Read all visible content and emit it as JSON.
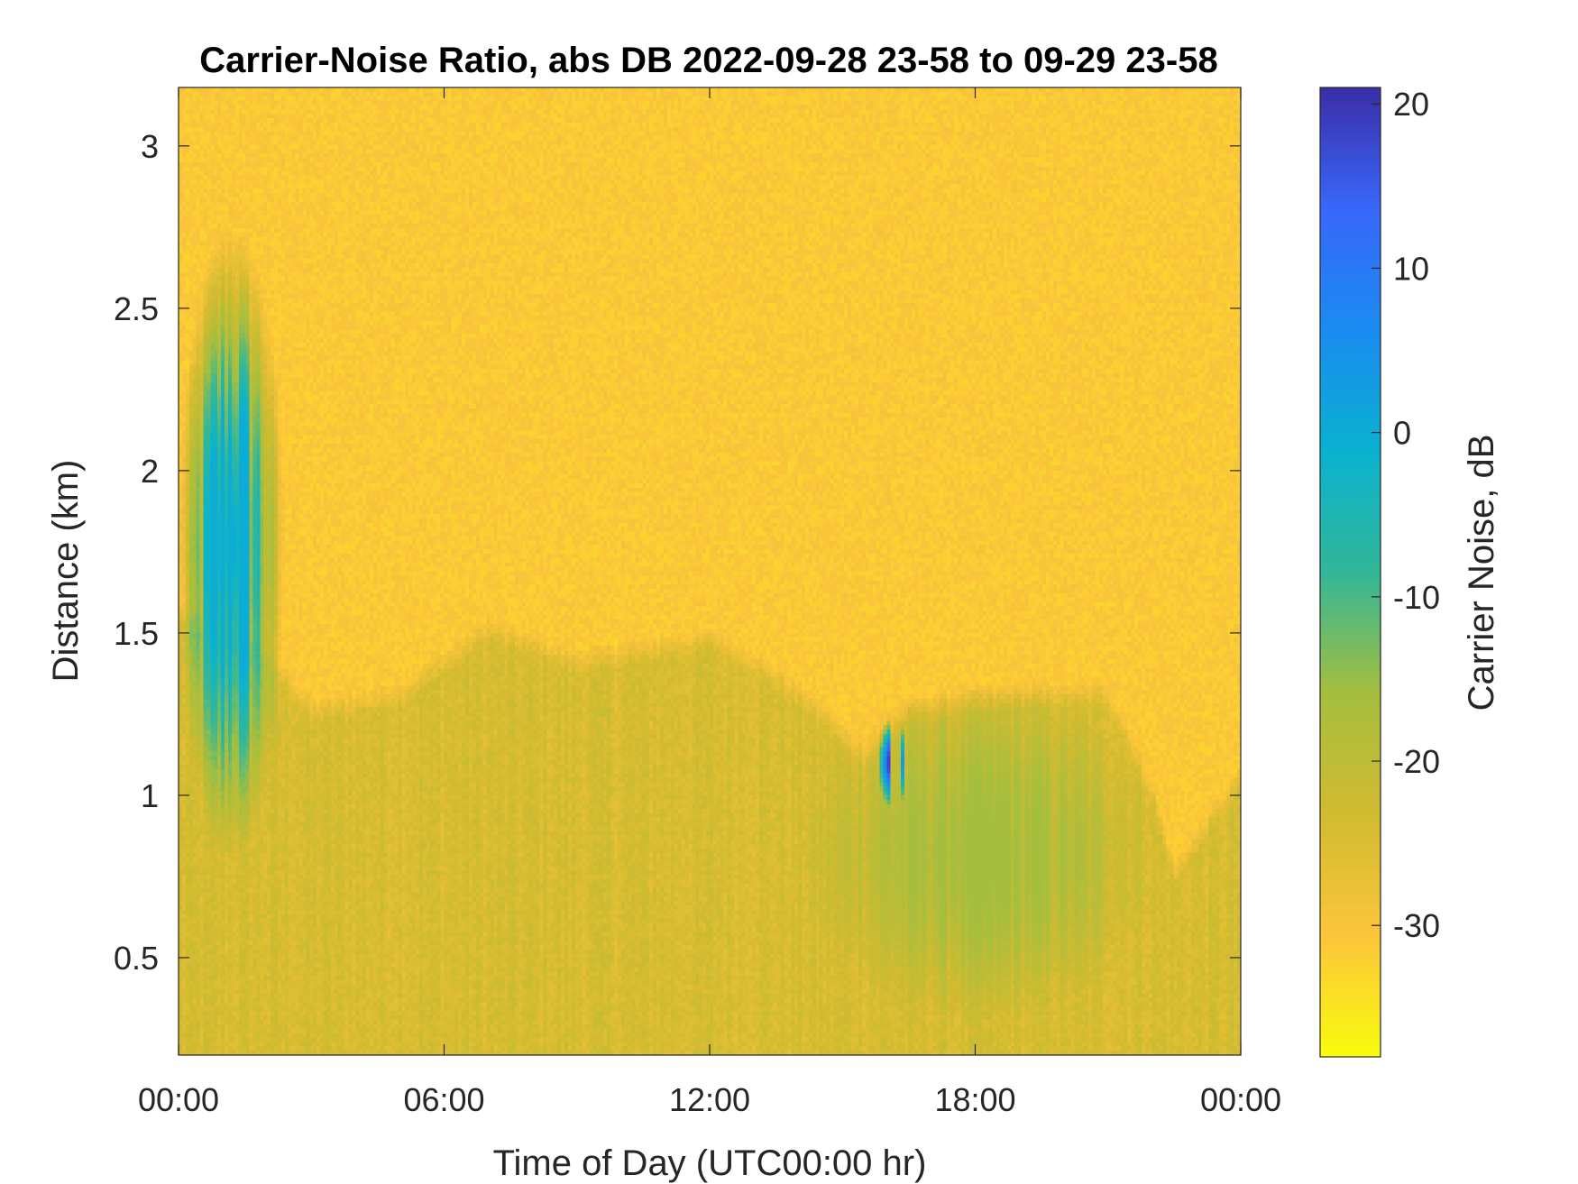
{
  "chart_data": {
    "type": "heatmap",
    "title": "Carrier-Noise Ratio, abs DB 2022-09-28 23-58 to 09-29 23-58",
    "xlabel": "Time of Day (UTC00:00 hr)",
    "ylabel": "Distance (km)",
    "colorbar_label": "Carrier Noise, dB",
    "xlim_hours": [
      0,
      24
    ],
    "ylim_km": [
      0.2,
      3.18
    ],
    "clim_db": [
      -38,
      21
    ],
    "x_ticks": [
      {
        "value": 0,
        "label": "00:00"
      },
      {
        "value": 6,
        "label": "06:00"
      },
      {
        "value": 12,
        "label": "12:00"
      },
      {
        "value": 18,
        "label": "18:00"
      },
      {
        "value": 24,
        "label": "00:00"
      }
    ],
    "y_ticks": [
      {
        "value": 0.5,
        "label": "0.5"
      },
      {
        "value": 1.0,
        "label": "1"
      },
      {
        "value": 1.5,
        "label": "1.5"
      },
      {
        "value": 2.0,
        "label": "2"
      },
      {
        "value": 2.5,
        "label": "2.5"
      },
      {
        "value": 3.0,
        "label": "3"
      }
    ],
    "colorbar_ticks": [
      {
        "value": -30,
        "label": "-30"
      },
      {
        "value": -20,
        "label": "-20"
      },
      {
        "value": -10,
        "label": "-10"
      },
      {
        "value": 0,
        "label": "0"
      },
      {
        "value": 10,
        "label": "10"
      },
      {
        "value": 20,
        "label": "20"
      }
    ],
    "colormap": [
      "#f9fb0e",
      "#fcc53b",
      "#d2bb30",
      "#a5be3e",
      "#33b798",
      "#0ab2d0",
      "#1a8cf0",
      "#3968fb",
      "#3a2fa9"
    ],
    "background_level_db": -31,
    "boundary_layer_top_km": [
      [
        0,
        1.6
      ],
      [
        1.5,
        1.55
      ],
      [
        3,
        1.3
      ],
      [
        5,
        1.35
      ],
      [
        6,
        1.45
      ],
      [
        7,
        1.55
      ],
      [
        9,
        1.45
      ],
      [
        12,
        1.52
      ],
      [
        13,
        1.45
      ],
      [
        14.5,
        1.3
      ],
      [
        15.5,
        1.15
      ],
      [
        16.5,
        1.3
      ],
      [
        19,
        1.35
      ],
      [
        21,
        1.35
      ],
      [
        22,
        1.05
      ],
      [
        22.5,
        0.8
      ],
      [
        24,
        1.1
      ]
    ],
    "boundary_layer_level_db": -24,
    "features": [
      {
        "name": "convective plume",
        "t_start_h": 14.0,
        "t_end_h": 22.2,
        "d_low_km": 0.3,
        "d_high_km": 1.35,
        "level_db": -16
      },
      {
        "name": "cloud returns early",
        "t_start_h": 0.0,
        "t_end_h": 2.4,
        "d_low_km": 0.8,
        "d_high_km": 2.75,
        "level_db": 0
      },
      {
        "name": "cloud returns afternoon",
        "t_start_h": 15.8,
        "t_end_h": 16.5,
        "d_low_km": 0.95,
        "d_high_km": 1.25,
        "level_db": 18
      }
    ]
  }
}
